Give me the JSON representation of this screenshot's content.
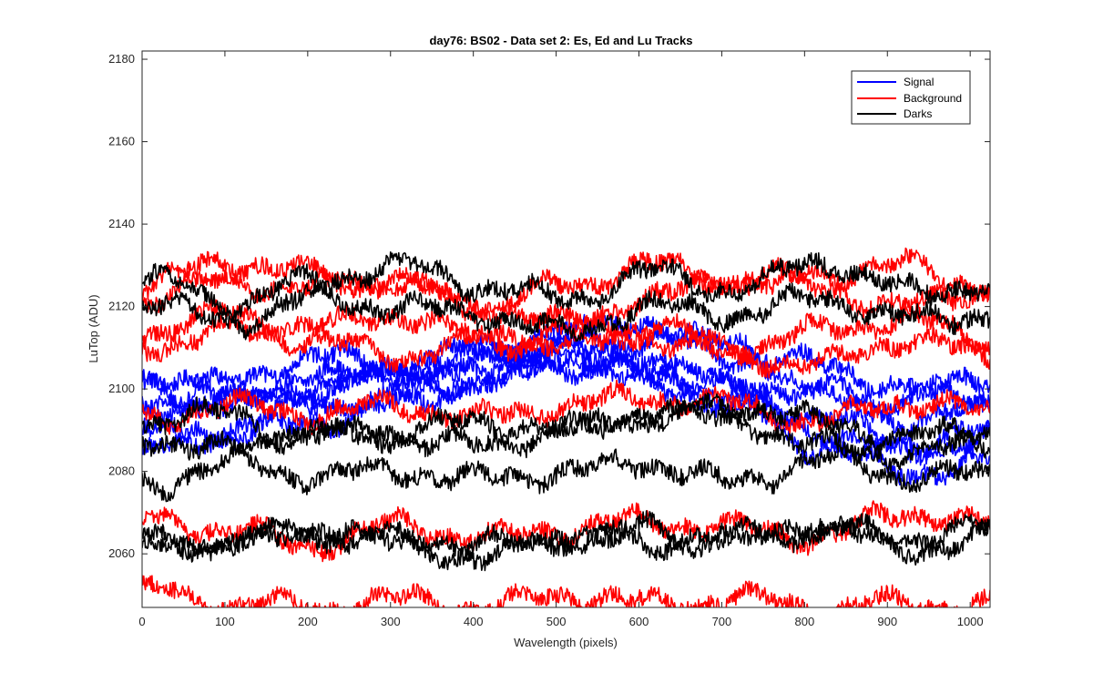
{
  "chart_data": {
    "type": "line",
    "title": "day76: BS02 - Data set 2: Es, Ed and Lu Tracks",
    "xlabel": "Wavelength (pixels)",
    "ylabel": "LuTop (ADU)",
    "xlim": [
      0,
      1024
    ],
    "ylim": [
      2047,
      2182
    ],
    "xticks": [
      0,
      100,
      200,
      300,
      400,
      500,
      600,
      700,
      800,
      900,
      1000
    ],
    "xtick_labels": [
      "0",
      "100",
      "200",
      "300",
      "400",
      "500",
      "600",
      "700",
      "800",
      "900",
      "1000"
    ],
    "yticks": [
      2060,
      2080,
      2100,
      2120,
      2140,
      2160,
      2180
    ],
    "ytick_labels": [
      "2060",
      "2080",
      "2100",
      "2120",
      "2140",
      "2160",
      "2180"
    ],
    "grid": false,
    "legend_position": "top-right",
    "colors": {
      "Signal": "#0000ff",
      "Background": "#ff0000",
      "Darks": "#000000"
    },
    "legend": [
      "Signal",
      "Background",
      "Darks"
    ],
    "series": [
      {
        "group": "Signal",
        "values": [
          2104,
          2098,
          2102,
          2106,
          2104,
          2109,
          2112,
          2108,
          2106,
          2100,
          2098
        ]
      },
      {
        "group": "Signal",
        "values": [
          2097,
          2101,
          2108,
          2105,
          2110,
          2114,
          2106,
          2101,
          2098,
          2097,
          2103
        ]
      },
      {
        "group": "Signal",
        "values": [
          2095,
          2097,
          2100,
          2103,
          2108,
          2112,
          2116,
          2110,
          2100,
          2092,
          2095
        ]
      },
      {
        "group": "Signal",
        "values": [
          2100,
          2096,
          2100,
          2104,
          2106,
          2108,
          2104,
          2100,
          2093,
          2087,
          2089
        ]
      },
      {
        "group": "Signal",
        "values": [
          2090,
          2088,
          2092,
          2096,
          2102,
          2106,
          2101,
          2096,
          2086,
          2080,
          2082
        ]
      },
      {
        "group": "Signal",
        "values": [
          2084,
          2091,
          2096,
          2098,
          2102,
          2108,
          2105,
          2097,
          2090,
          2084,
          2088
        ]
      },
      {
        "group": "Background",
        "values": [
          2125,
          2131,
          2128,
          2126,
          2120,
          2125,
          2130,
          2126,
          2128,
          2130,
          2125
        ]
      },
      {
        "group": "Background",
        "values": [
          2122,
          2126,
          2124,
          2126,
          2120,
          2116,
          2122,
          2127,
          2124,
          2120,
          2124
        ]
      },
      {
        "group": "Background",
        "values": [
          2114,
          2118,
          2115,
          2118,
          2112,
          2110,
          2116,
          2110,
          2114,
          2117,
          2112
        ]
      },
      {
        "group": "Background",
        "values": [
          2110,
          2114,
          2112,
          2108,
          2112,
          2115,
          2112,
          2108,
          2106,
          2112,
          2108
        ]
      },
      {
        "group": "Background",
        "values": [
          2092,
          2096,
          2094,
          2096,
          2093,
          2096,
          2098,
          2096,
          2092,
          2097,
          2094
        ]
      },
      {
        "group": "Background",
        "values": [
          2068,
          2066,
          2062,
          2067,
          2064,
          2066,
          2068,
          2066,
          2064,
          2070,
          2067
        ]
      },
      {
        "group": "Background",
        "values": [
          2051,
          2048,
          2047,
          2049,
          2047,
          2050,
          2048,
          2049,
          2047,
          2048,
          2047
        ]
      },
      {
        "group": "Darks",
        "values": [
          2127,
          2121,
          2126,
          2130,
          2125,
          2122,
          2128,
          2124,
          2131,
          2124,
          2125
        ]
      },
      {
        "group": "Darks",
        "values": [
          2122,
          2116,
          2122,
          2120,
          2118,
          2114,
          2120,
          2118,
          2122,
          2117,
          2118
        ]
      },
      {
        "group": "Darks",
        "values": [
          2092,
          2094,
          2088,
          2090,
          2092,
          2090,
          2093,
          2096,
          2092,
          2088,
          2091
        ]
      },
      {
        "group": "Darks",
        "values": [
          2088,
          2085,
          2090,
          2088,
          2086,
          2090,
          2094,
          2092,
          2086,
          2084,
          2087
        ]
      },
      {
        "group": "Darks",
        "values": [
          2076,
          2082,
          2079,
          2080,
          2078,
          2080,
          2082,
          2077,
          2083,
          2079,
          2079
        ]
      },
      {
        "group": "Darks",
        "values": [
          2064,
          2062,
          2065,
          2064,
          2062,
          2064,
          2062,
          2063,
          2066,
          2064,
          2066
        ]
      },
      {
        "group": "Darks",
        "values": [
          2061,
          2063,
          2066,
          2062,
          2059,
          2064,
          2066,
          2064,
          2067,
          2061,
          2064
        ]
      }
    ]
  }
}
